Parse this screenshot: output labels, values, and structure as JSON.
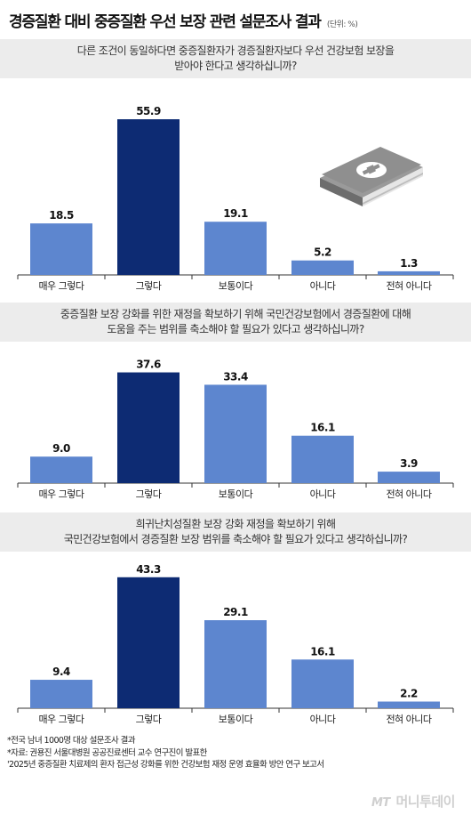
{
  "title": "경증질환 대비 중증질환 우선 보장 관련 설문조사 결과",
  "unit": "(단위: %)",
  "categories": [
    "매우 그렇다",
    "그렇다",
    "보통이다",
    "아니다",
    "전혀 아니다"
  ],
  "questions": [
    {
      "lines": [
        "다른 조건이 동일하다면 중증질환자가 경증질환자보다 우선 건강보험 보장을",
        "받아야 한다고 생각하십니까?"
      ]
    },
    {
      "lines": [
        "중증질환 보장 강화를 위한 재정을 확보하기 위해 국민건강보험에서 경증질환에 대해",
        "도움을 주는 범위를 축소해야 할 필요가 있다고 생각하십니까?"
      ]
    },
    {
      "lines": [
        "희귀난치성질환 보장 강화 재정을 확보하기 위해",
        "국민건강보험에서 경증질환 보장 범위를 축소해야 할 필요가 있다고 생각하십니까?"
      ]
    }
  ],
  "chart_data": [
    {
      "type": "bar",
      "categories": [
        "매우 그렇다",
        "그렇다",
        "보통이다",
        "아니다",
        "전혀 아니다"
      ],
      "values": [
        18.5,
        55.9,
        19.1,
        5.2,
        1.3
      ],
      "highlight_index": 1,
      "colors": {
        "bar": "#5d86cf",
        "highlight": "#0d2b73"
      }
    },
    {
      "type": "bar",
      "categories": [
        "매우 그렇다",
        "그렇다",
        "보통이다",
        "아니다",
        "전혀 아니다"
      ],
      "values": [
        9.0,
        37.6,
        33.4,
        16.1,
        3.9
      ],
      "highlight_index": 1,
      "colors": {
        "bar": "#5d86cf",
        "highlight": "#0d2b73"
      }
    },
    {
      "type": "bar",
      "categories": [
        "매우 그렇다",
        "그렇다",
        "보통이다",
        "아니다",
        "전혀 아니다"
      ],
      "values": [
        9.4,
        43.3,
        29.1,
        16.1,
        2.2
      ],
      "highlight_index": 1,
      "colors": {
        "bar": "#5d86cf",
        "highlight": "#0d2b73"
      }
    }
  ],
  "notes": [
    "*전국 남녀 1000명 대상 설문조사 결과",
    "*자료: 권용진 서울대병원 공공진료센터 교수 연구진이 발표한",
    "'2025년 중증질환 치료제의 환자 접근성 강화를 위한 건강보험 재정 운영 효율화 방안 연구 보고서"
  ],
  "logo": {
    "prefix": "MT",
    "text": "머니투데이"
  },
  "icons": {
    "illustration": "medical-book-icon"
  }
}
